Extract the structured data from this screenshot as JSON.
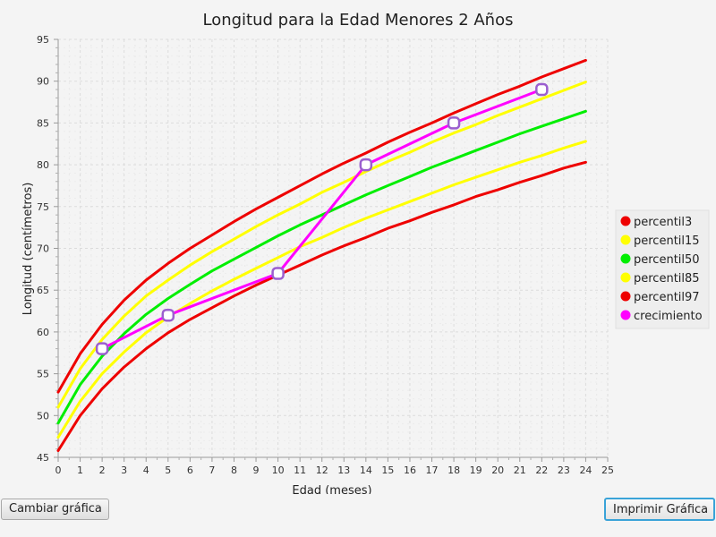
{
  "window": {
    "background": "#f4f4f4"
  },
  "buttons": {
    "change_label": "Cambiar gráfica",
    "print_label": "Imprimir Gráfica"
  },
  "chart_data": {
    "type": "line",
    "title": "Longitud para la Edad Menores 2 Años",
    "xlabel": "Edad (meses)",
    "ylabel": "Longitud (centímetros)",
    "xlim": [
      0,
      25
    ],
    "ylim": [
      45,
      95
    ],
    "xticks": [
      0,
      1,
      2,
      3,
      4,
      5,
      6,
      7,
      8,
      9,
      10,
      11,
      12,
      13,
      14,
      15,
      16,
      17,
      18,
      19,
      20,
      21,
      22,
      23,
      24,
      25
    ],
    "yticks": [
      45,
      50,
      55,
      60,
      65,
      70,
      75,
      80,
      85,
      90,
      95
    ],
    "grid": true,
    "legend_position": "right",
    "series": [
      {
        "name": "percentil3",
        "color": "#ee0000",
        "marker": false,
        "x": [
          0,
          1,
          2,
          3,
          4,
          5,
          6,
          7,
          8,
          9,
          10,
          11,
          12,
          13,
          14,
          15,
          16,
          17,
          18,
          19,
          20,
          21,
          22,
          23,
          24
        ],
        "values": [
          45.8,
          50.0,
          53.2,
          55.8,
          58.0,
          59.9,
          61.5,
          62.9,
          64.3,
          65.6,
          66.8,
          68.0,
          69.2,
          70.3,
          71.3,
          72.4,
          73.3,
          74.3,
          75.2,
          76.2,
          77.0,
          77.9,
          78.7,
          79.6,
          80.3
        ]
      },
      {
        "name": "percentil15",
        "color": "#ffff00",
        "marker": false,
        "x": [
          0,
          1,
          2,
          3,
          4,
          5,
          6,
          7,
          8,
          9,
          10,
          11,
          12,
          13,
          14,
          15,
          16,
          17,
          18,
          19,
          20,
          21,
          22,
          23,
          24
        ],
        "values": [
          47.4,
          51.7,
          55.0,
          57.6,
          59.9,
          61.8,
          63.4,
          64.9,
          66.3,
          67.6,
          68.9,
          70.2,
          71.3,
          72.5,
          73.6,
          74.6,
          75.6,
          76.6,
          77.6,
          78.5,
          79.4,
          80.3,
          81.1,
          82.0,
          82.8
        ]
      },
      {
        "name": "percentil50",
        "color": "#00ee00",
        "marker": false,
        "x": [
          0,
          1,
          2,
          3,
          4,
          5,
          6,
          7,
          8,
          9,
          10,
          11,
          12,
          13,
          14,
          15,
          16,
          17,
          18,
          19,
          20,
          21,
          22,
          23,
          24
        ],
        "values": [
          49.1,
          53.7,
          57.1,
          59.8,
          62.1,
          64.0,
          65.7,
          67.3,
          68.7,
          70.1,
          71.5,
          72.8,
          74.0,
          75.2,
          76.4,
          77.5,
          78.6,
          79.7,
          80.7,
          81.7,
          82.7,
          83.7,
          84.6,
          85.5,
          86.4
        ]
      },
      {
        "name": "percentil85",
        "color": "#ffff00",
        "marker": false,
        "x": [
          0,
          1,
          2,
          3,
          4,
          5,
          6,
          7,
          8,
          9,
          10,
          11,
          12,
          13,
          14,
          15,
          16,
          17,
          18,
          19,
          20,
          21,
          22,
          23,
          24
        ],
        "values": [
          51.0,
          55.6,
          59.1,
          61.9,
          64.3,
          66.2,
          68.0,
          69.6,
          71.1,
          72.6,
          74.0,
          75.3,
          76.7,
          77.9,
          79.2,
          80.4,
          81.5,
          82.7,
          83.8,
          84.8,
          85.9,
          86.9,
          87.9,
          88.9,
          89.9
        ]
      },
      {
        "name": "percentil97",
        "color": "#ee0000",
        "marker": false,
        "x": [
          0,
          1,
          2,
          3,
          4,
          5,
          6,
          7,
          8,
          9,
          10,
          11,
          12,
          13,
          14,
          15,
          16,
          17,
          18,
          19,
          20,
          21,
          22,
          23,
          24
        ],
        "values": [
          52.8,
          57.4,
          60.9,
          63.8,
          66.2,
          68.2,
          70.0,
          71.6,
          73.2,
          74.7,
          76.1,
          77.5,
          78.9,
          80.2,
          81.4,
          82.7,
          83.9,
          85.0,
          86.2,
          87.3,
          88.4,
          89.4,
          90.5,
          91.5,
          92.5
        ]
      },
      {
        "name": "crecimiento",
        "color": "#ff00ff",
        "marker": true,
        "marker_color": "#9b5fcf",
        "x": [
          2,
          5,
          10,
          14,
          18,
          22
        ],
        "values": [
          58,
          62,
          67,
          80,
          85,
          89
        ]
      }
    ]
  }
}
